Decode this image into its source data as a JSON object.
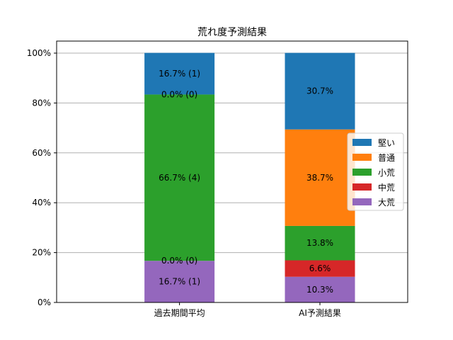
{
  "chart_data": {
    "type": "bar",
    "stacked": true,
    "title": "荒れ度予測結果",
    "categories": [
      "過去期間平均",
      "AI予測結果"
    ],
    "series": [
      {
        "name": "大荒",
        "color": "#9467bd",
        "values": [
          16.7,
          10.3
        ],
        "labels": [
          "16.7% (1)",
          "10.3%"
        ]
      },
      {
        "name": "中荒",
        "color": "#d62728",
        "values": [
          0.0,
          6.6
        ],
        "labels": [
          "0.0% (0)",
          "6.6%"
        ]
      },
      {
        "name": "小荒",
        "color": "#2ca02c",
        "values": [
          66.7,
          13.8
        ],
        "labels": [
          "66.7% (4)",
          "13.8%"
        ]
      },
      {
        "name": "普通",
        "color": "#ff7f0e",
        "values": [
          0.0,
          38.7
        ],
        "labels": [
          "0.0% (0)",
          "38.7%"
        ]
      },
      {
        "name": "堅い",
        "color": "#1f77b4",
        "values": [
          16.7,
          30.7
        ],
        "labels": [
          "16.7% (1)",
          "30.7%"
        ]
      }
    ],
    "legend_order": [
      "堅い",
      "普通",
      "小荒",
      "中荒",
      "大荒"
    ],
    "legend_position": "right",
    "ylim": [
      0,
      100
    ],
    "yticks": [
      "0%",
      "20%",
      "40%",
      "60%",
      "80%",
      "100%"
    ],
    "ytick_values": [
      0,
      20,
      40,
      60,
      80,
      100
    ],
    "grid": "horizontal"
  }
}
